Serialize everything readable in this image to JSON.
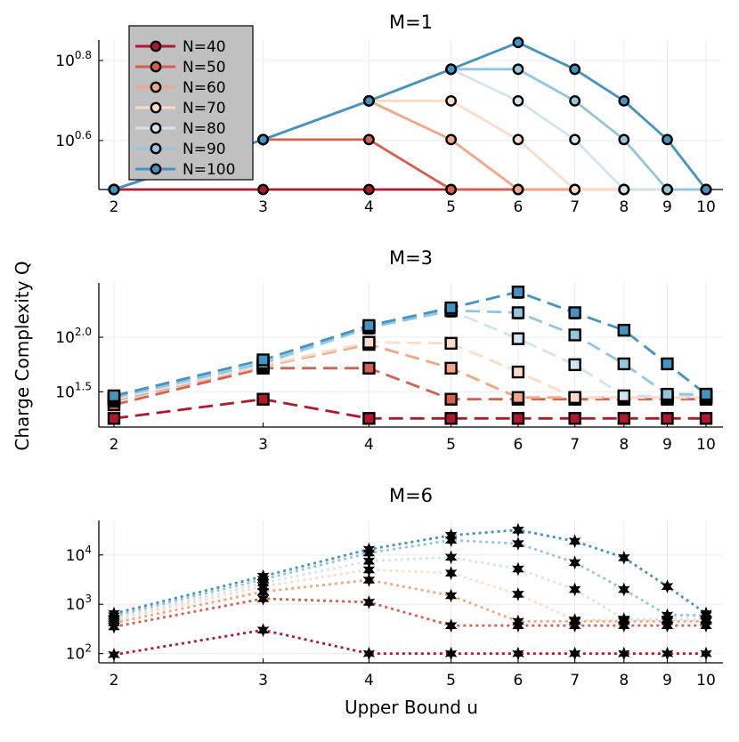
{
  "figure": {
    "shared_ylabel": "Charge Complexity Q",
    "shared_xlabel": "Upper Bound u"
  },
  "colors": {
    "N=40": "#b2182b",
    "N=50": "#d6604d",
    "N=60": "#f4a582",
    "N=70": "#fddbc7",
    "N=80": "#d1e5f0",
    "N=90": "#92c5de",
    "N=100": "#4393c3",
    "legend_bg": "#c0c0c0",
    "grid": "#ebebeb"
  },
  "chart_data": [
    {
      "type": "line",
      "title": "M=1",
      "xlabel": "",
      "ylabel": "",
      "x": [
        2,
        3,
        4,
        5,
        6,
        7,
        8,
        9,
        10
      ],
      "x_scale": "log",
      "y_scale": "log",
      "ylim": [
        3.0,
        7.1
      ],
      "yticks": [
        {
          "value": 3.98,
          "label": "10^0.6"
        },
        {
          "value": 6.31,
          "label": "10^0.8"
        }
      ],
      "line_style": "solid",
      "marker": "circle",
      "error_bars": false,
      "legend": {
        "placement": "top-left",
        "entries": [
          "N=40",
          "N=50",
          "N=60",
          "N=70",
          "N=80",
          "N=90",
          "N=100"
        ]
      },
      "series": [
        {
          "name": "N=40",
          "values": [
            3,
            3,
            3,
            3,
            3,
            3,
            3,
            3,
            3
          ]
        },
        {
          "name": "N=50",
          "values": [
            3,
            4,
            4,
            3,
            3,
            3,
            3,
            3,
            3
          ]
        },
        {
          "name": "N=60",
          "values": [
            3,
            4,
            5,
            4,
            3,
            3,
            3,
            3,
            3
          ]
        },
        {
          "name": "N=70",
          "values": [
            3,
            4,
            5,
            5,
            4,
            3,
            3,
            3,
            3
          ]
        },
        {
          "name": "N=80",
          "values": [
            3,
            4,
            5,
            6,
            5,
            4,
            3,
            3,
            3
          ]
        },
        {
          "name": "N=90",
          "values": [
            3,
            4,
            5,
            6,
            6,
            5,
            4,
            3,
            3
          ]
        },
        {
          "name": "N=100",
          "values": [
            3,
            4,
            5,
            6,
            7,
            6,
            5,
            4,
            3
          ]
        }
      ]
    },
    {
      "type": "line",
      "title": "M=3",
      "xlabel": "",
      "ylabel": "",
      "x": [
        2,
        3,
        4,
        5,
        6,
        7,
        8,
        9,
        10
      ],
      "x_scale": "log",
      "y_scale": "log",
      "ylim": [
        15,
        315
      ],
      "yticks": [
        {
          "value": 31.6,
          "label": "10^1.5"
        },
        {
          "value": 100,
          "label": "10^2.0"
        }
      ],
      "line_style": "dashed",
      "marker": "square",
      "error_bars": true,
      "series": [
        {
          "name": "N=40",
          "values": [
            18,
            27,
            18,
            18,
            18,
            18,
            18,
            18,
            18
          ]
        },
        {
          "name": "N=50",
          "values": [
            24,
            52,
            52,
            27,
            27,
            27,
            27,
            27,
            27
          ]
        },
        {
          "name": "N=60",
          "values": [
            26,
            54,
            86,
            52,
            28,
            28,
            28,
            28,
            28
          ]
        },
        {
          "name": "N=70",
          "values": [
            27,
            55,
            90,
            88,
            48,
            28,
            28,
            28,
            28
          ]
        },
        {
          "name": "N=80",
          "values": [
            27,
            56,
            122,
            175,
            97,
            56,
            29,
            29,
            29
          ]
        },
        {
          "name": "N=90",
          "values": [
            28,
            58,
            123,
            176,
            168,
            105,
            57,
            30,
            30
          ]
        },
        {
          "name": "N=100",
          "values": [
            29,
            62,
            128,
            186,
            260,
            168,
            116,
            57,
            30
          ]
        }
      ]
    },
    {
      "type": "line",
      "title": "M=6",
      "xlabel": "Upper Bound u",
      "ylabel": "",
      "x": [
        2,
        3,
        4,
        5,
        6,
        7,
        8,
        9,
        10
      ],
      "x_scale": "log",
      "y_scale": "log",
      "ylim": [
        65,
        50000
      ],
      "yticks": [
        {
          "value": 100,
          "label": "10^2"
        },
        {
          "value": 1000,
          "label": "10^3"
        },
        {
          "value": 10000,
          "label": "10^4"
        }
      ],
      "line_style": "dotted",
      "marker": "star",
      "error_bars": true,
      "series": [
        {
          "name": "N=40",
          "values": [
            95,
            300,
            100,
            100,
            100,
            100,
            100,
            100,
            100
          ]
        },
        {
          "name": "N=50",
          "values": [
            350,
            1300,
            1100,
            370,
            370,
            370,
            370,
            370,
            370
          ]
        },
        {
          "name": "N=60",
          "values": [
            420,
            1800,
            3100,
            1500,
            450,
            450,
            450,
            450,
            450
          ]
        },
        {
          "name": "N=70",
          "values": [
            480,
            2300,
            5000,
            4300,
            1600,
            480,
            480,
            480,
            480
          ]
        },
        {
          "name": "N=80",
          "values": [
            520,
            2700,
            7500,
            9000,
            5200,
            2000,
            500,
            500,
            500
          ]
        },
        {
          "name": "N=90",
          "values": [
            580,
            3200,
            11000,
            20000,
            17000,
            7000,
            2000,
            600,
            600
          ]
        },
        {
          "name": "N=100",
          "values": [
            650,
            3700,
            13000,
            25000,
            32000,
            19000,
            8800,
            2300,
            650
          ]
        }
      ]
    }
  ]
}
